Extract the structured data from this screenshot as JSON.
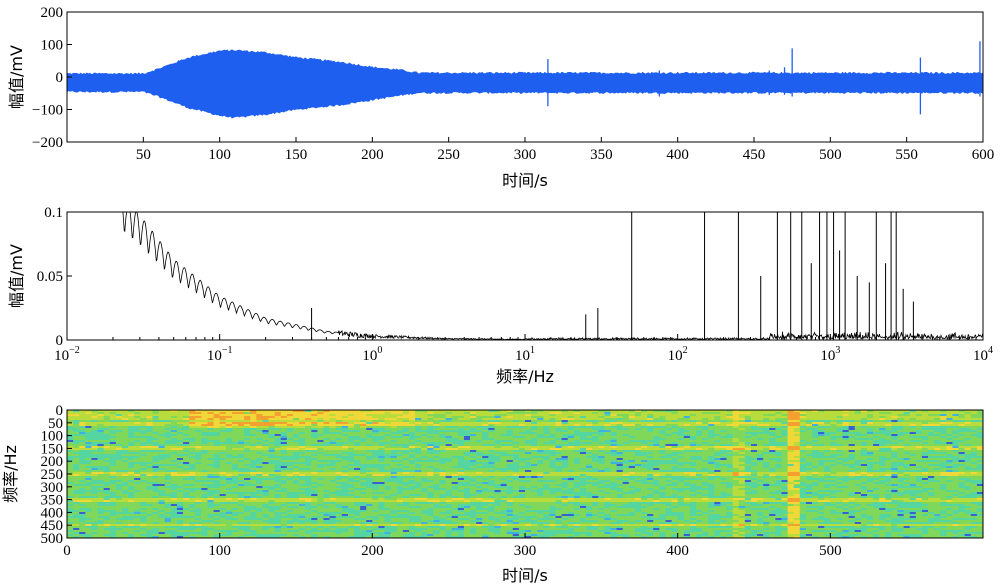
{
  "chart_data": [
    {
      "type": "line",
      "panel": "time-waveform",
      "xlabel": "时间/s",
      "ylabel": "幅值/mV",
      "xlim": [
        0,
        600
      ],
      "ylim": [
        -200,
        200
      ],
      "xticks": [
        50,
        100,
        150,
        200,
        250,
        300,
        350,
        400,
        450,
        500,
        550,
        600
      ],
      "xtick_labels": [
        "50",
        "100",
        "150",
        "200",
        "250",
        "300",
        "350",
        "400",
        "450",
        "500",
        "550",
        "600"
      ],
      "yticks": [
        -200,
        -100,
        0,
        100,
        200
      ],
      "ytick_labels": [
        "−200",
        "−100",
        "0",
        "100",
        "200"
      ],
      "color": "#1f5ff0",
      "envelope": {
        "x": [
          0,
          50,
          60,
          80,
          100,
          110,
          130,
          150,
          180,
          200,
          220,
          230,
          600
        ],
        "upper": [
          10,
          10,
          25,
          60,
          80,
          82,
          75,
          60,
          45,
          30,
          20,
          12,
          12
        ],
        "lower": [
          -45,
          -45,
          -60,
          -95,
          -118,
          -125,
          -115,
          -100,
          -85,
          -70,
          -55,
          -48,
          -48
        ]
      },
      "spikes": [
        {
          "x": 315,
          "min": -90,
          "max": 55
        },
        {
          "x": 388,
          "min": -60,
          "max": 20
        },
        {
          "x": 460,
          "min": -55,
          "max": 20
        },
        {
          "x": 470,
          "min": -55,
          "max": 30
        },
        {
          "x": 475,
          "min": -60,
          "max": 88
        },
        {
          "x": 559,
          "min": -115,
          "max": 60
        },
        {
          "x": 598,
          "min": -60,
          "max": 110
        }
      ]
    },
    {
      "type": "line",
      "panel": "spectrum",
      "xscale": "log",
      "xlabel": "频率/Hz",
      "ylabel": "幅值/mV",
      "xlim": [
        0.01,
        10000
      ],
      "ylim": [
        0,
        0.1
      ],
      "xticks": [
        0.01,
        0.1,
        1,
        10,
        100,
        1000,
        10000
      ],
      "xtick_bases": [
        "10",
        "10",
        "10",
        "10",
        "10",
        "10",
        "10"
      ],
      "xtick_exponents": [
        "−2",
        "−1",
        "0",
        "1",
        "2",
        "3",
        "4"
      ],
      "yticks": [
        0,
        0.05,
        0.1
      ],
      "ytick_labels": [
        "0",
        "0.05",
        "0.1"
      ],
      "color": "#000000",
      "decay": {
        "x": [
          0.022,
          0.03,
          0.05,
          0.1,
          0.2,
          0.5,
          1,
          3,
          10
        ],
        "y": [
          0.1,
          0.085,
          0.055,
          0.03,
          0.015,
          0.006,
          0.003,
          0.001,
          0.0005
        ]
      },
      "peaks": [
        {
          "x": 0.4,
          "y": 0.025
        },
        {
          "x": 25,
          "y": 0.02
        },
        {
          "x": 30,
          "y": 0.025
        },
        {
          "x": 50,
          "y": 0.1
        },
        {
          "x": 150,
          "y": 0.1
        },
        {
          "x": 250,
          "y": 0.1
        },
        {
          "x": 350,
          "y": 0.05
        },
        {
          "x": 450,
          "y": 0.1
        },
        {
          "x": 550,
          "y": 0.1
        },
        {
          "x": 650,
          "y": 0.1
        },
        {
          "x": 750,
          "y": 0.06
        },
        {
          "x": 850,
          "y": 0.1
        },
        {
          "x": 950,
          "y": 0.1
        },
        {
          "x": 1050,
          "y": 0.1
        },
        {
          "x": 1150,
          "y": 0.07
        },
        {
          "x": 1250,
          "y": 0.1
        },
        {
          "x": 1500,
          "y": 0.05
        },
        {
          "x": 1800,
          "y": 0.045
        },
        {
          "x": 2000,
          "y": 0.1
        },
        {
          "x": 2300,
          "y": 0.06
        },
        {
          "x": 2500,
          "y": 0.1
        },
        {
          "x": 2700,
          "y": 0.1
        },
        {
          "x": 3000,
          "y": 0.04
        },
        {
          "x": 3500,
          "y": 0.03
        }
      ]
    },
    {
      "type": "heatmap",
      "panel": "spectrogram",
      "xlabel": "时间/s",
      "ylabel": "频率/Hz",
      "xlim": [
        0,
        600
      ],
      "ylim": [
        0,
        500
      ],
      "xticks": [
        0,
        100,
        200,
        300,
        400,
        500
      ],
      "xtick_labels": [
        "0",
        "100",
        "200",
        "300",
        "400",
        "500"
      ],
      "yticks": [
        0,
        50,
        100,
        150,
        200,
        250,
        300,
        350,
        400,
        450,
        500
      ],
      "ytick_labels": [
        "0",
        "50",
        "100",
        "150",
        "200",
        "250",
        "300",
        "350",
        "400",
        "450",
        "500"
      ],
      "colors": [
        "#3a5fd0",
        "#3fb0e0",
        "#55d6a0",
        "#7fd85a",
        "#b8dc3c",
        "#f0d838",
        "#f4a030"
      ],
      "bright_bands_hz": [
        55,
        150,
        250,
        350,
        450
      ],
      "bright_columns_s": [
        440,
        475
      ]
    }
  ]
}
